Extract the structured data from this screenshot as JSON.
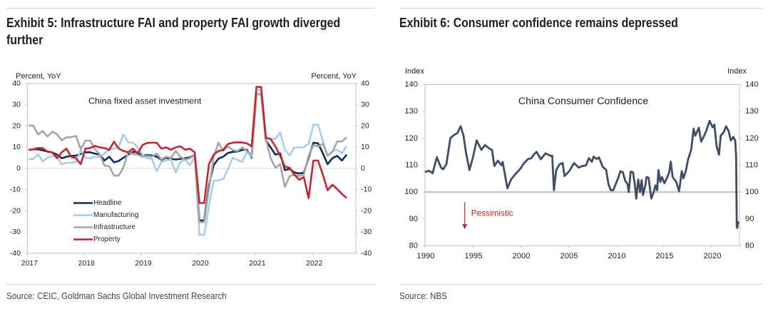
{
  "panels": [
    {
      "title": "Exhibit 5: Infrastructure FAI and property FAI growth diverged further",
      "source": "Source: CEIC, Goldman Sachs Global Investment Research"
    },
    {
      "title": "Exhibit 6: Consumer confidence remains depressed",
      "source": "Source: NBS"
    }
  ],
  "chart_data": [
    {
      "type": "line",
      "title": "China fixed asset investment",
      "ylabel_left": "Percent, YoY",
      "ylabel_right": "Percent, YoY",
      "xlabel": "",
      "ylim": [
        -40,
        40
      ],
      "yticks": [
        40,
        30,
        20,
        10,
        0,
        -10,
        -20,
        -30,
        -40
      ],
      "xlim": [
        2017,
        2022.75
      ],
      "xticks": [
        2017,
        2018,
        2019,
        2020,
        2021,
        2022
      ],
      "x_start": "2017-01",
      "frequency": "monthly",
      "grid": false,
      "reference_line": 0,
      "legend_position": "lower-left",
      "series": [
        {
          "name": "Headline",
          "color": "#0c2e5a",
          "values": [
            8.7,
            9.0,
            9.0,
            8.5,
            8.0,
            7.5,
            6.5,
            4.8,
            5.5,
            5.9,
            6.0,
            6.8,
            7.6,
            7.6,
            7.0,
            6.5,
            3.7,
            5.5,
            2.9,
            3.5,
            5.0,
            6.5,
            7.8,
            7.6,
            6.1,
            6.3,
            6.1,
            5.6,
            4.0,
            5.0,
            4.5,
            4.2,
            4.5,
            4.8,
            5.2,
            6.4,
            -24.5,
            -24.5,
            -8.0,
            1.5,
            4.6,
            5.5,
            7.3,
            7.8,
            8.0,
            8.7,
            8.8,
            5.0,
            35.0,
            35.0,
            13.2,
            9.9,
            6.5,
            7.1,
            -0.8,
            -0.2,
            -1.9,
            -2.4,
            -2.1,
            5.0,
            12.1,
            11.8,
            7.1,
            2.0,
            4.8,
            5.9,
            3.7,
            6.5
          ]
        },
        {
          "name": "Manufacturing",
          "color": "#a8cde8",
          "values": [
            4.4,
            4.4,
            6.7,
            3.3,
            5.0,
            5.9,
            5.5,
            1.8,
            2.7,
            2.7,
            3.1,
            8.5,
            5.0,
            4.8,
            5.4,
            5.4,
            7.0,
            8.7,
            9.3,
            10.1,
            16.0,
            12.3,
            12.1,
            9.9,
            6.5,
            4.8,
            4.5,
            -1.3,
            3.1,
            3.7,
            4.2,
            -1.9,
            3.1,
            4.2,
            1.4,
            5.4,
            -31.3,
            -31.3,
            -18.0,
            -5.8,
            -5.5,
            -5.0,
            -0.5,
            5.0,
            4.0,
            3.0,
            8.0,
            5.5,
            37.0,
            37.0,
            14.4,
            14.0,
            13.8,
            16.9,
            8.8,
            6.0,
            9.9,
            9.9,
            10.0,
            11.6,
            20.6,
            20.6,
            12.7,
            6.0,
            8.2,
            8.8,
            7.1,
            10.5
          ]
        },
        {
          "name": "Infrastructure",
          "color": "#a5a5a5",
          "values": [
            20.2,
            20.2,
            16.0,
            17.6,
            15.0,
            17.3,
            16.1,
            13.2,
            14.7,
            14.7,
            15.3,
            9.1,
            13.1,
            13.1,
            9.1,
            6.7,
            1.3,
            1.0,
            -3.4,
            -3.4,
            0.5,
            7.8,
            6.7,
            6.5,
            5.5,
            5.9,
            5.5,
            7.0,
            4.2,
            5.5,
            5.0,
            8.2,
            5.4,
            4.2,
            4.8,
            6.4,
            -25.3,
            -25.3,
            -10.0,
            5.4,
            12.1,
            8.2,
            10.4,
            8.7,
            8.2,
            9.9,
            8.2,
            6.5,
            35.0,
            35.0,
            13.8,
            4.8,
            0.3,
            2.0,
            -8.7,
            -3.6,
            -3.0,
            -3.6,
            -3.0,
            6.0,
            11.0,
            10.4,
            11.6,
            6.0,
            7.7,
            12.7,
            12.7,
            14.7
          ]
        },
        {
          "name": "Property",
          "color": "#c1272d",
          "values": [
            8.7,
            9.0,
            9.6,
            9.6,
            7.8,
            7.6,
            4.8,
            7.6,
            9.3,
            5.4,
            4.8,
            2.0,
            9.3,
            9.6,
            10.6,
            9.9,
            9.6,
            8.7,
            12.6,
            9.3,
            8.2,
            7.6,
            9.3,
            7.1,
            11.0,
            12.0,
            12.1,
            12.1,
            9.3,
            9.9,
            8.8,
            9.9,
            10.4,
            8.8,
            9.3,
            7.6,
            -16.3,
            -16.3,
            2.0,
            6.5,
            8.2,
            8.7,
            11.5,
            12.1,
            12.3,
            12.2,
            11.8,
            10.4,
            38.4,
            38.4,
            14.4,
            13.8,
            10.4,
            5.9,
            0.9,
            0.3,
            -3.0,
            -5.3,
            -4.1,
            -14.0,
            3.7,
            3.7,
            -3.0,
            -10.3,
            -7.7,
            -9.7,
            -12.0,
            -14.0
          ]
        }
      ]
    },
    {
      "type": "line",
      "title": "China Consumer Confidence",
      "ylabel_left": "Index",
      "ylabel_right": "Index",
      "xlabel": "",
      "ylim": [
        80,
        140
      ],
      "yticks": [
        140,
        130,
        120,
        110,
        100,
        90,
        80
      ],
      "xlim": [
        1990,
        2022.9
      ],
      "xticks": [
        1990,
        1995,
        2000,
        2005,
        2010,
        2015,
        2020
      ],
      "grid": false,
      "reference_line": 100,
      "annotation": {
        "text": "Pessimistic",
        "color": "#c1272d",
        "direction": "down",
        "arrow_from": [
          1994.16,
          96.3
        ],
        "arrow_to": [
          1994.16,
          86.2
        ],
        "label_at": [
          1994.83,
          92.0
        ]
      },
      "series": [
        {
          "name": "China Consumer Confidence",
          "color": "#3f4e66",
          "points": [
            [
              1990.0,
              107.5
            ],
            [
              1990.43,
              107.9
            ],
            [
              1990.8,
              107.0
            ],
            [
              1991.24,
              113.0
            ],
            [
              1991.67,
              109.1
            ],
            [
              1991.92,
              108.5
            ],
            [
              1992.24,
              110.4
            ],
            [
              1992.66,
              120.1
            ],
            [
              1993.03,
              121.2
            ],
            [
              1993.4,
              122.0
            ],
            [
              1993.73,
              124.5
            ],
            [
              1994.03,
              121.0
            ],
            [
              1994.28,
              114.8
            ],
            [
              1994.65,
              108.2
            ],
            [
              1995.02,
              113.0
            ],
            [
              1995.4,
              119.2
            ],
            [
              1995.9,
              115.7
            ],
            [
              1996.27,
              117.5
            ],
            [
              1996.77,
              116.1
            ],
            [
              1997.01,
              115.7
            ],
            [
              1997.26,
              109.7
            ],
            [
              1997.63,
              111.7
            ],
            [
              1998.0,
              110.0
            ],
            [
              1998.13,
              111.2
            ],
            [
              1998.37,
              106.4
            ],
            [
              1998.63,
              101.4
            ],
            [
              1999.0,
              104.7
            ],
            [
              1999.5,
              106.9
            ],
            [
              1999.87,
              108.2
            ],
            [
              2000.37,
              110.8
            ],
            [
              2000.75,
              112.2
            ],
            [
              2001.12,
              112.6
            ],
            [
              2001.37,
              113.9
            ],
            [
              2001.67,
              115.0
            ],
            [
              2002.12,
              112.2
            ],
            [
              2002.61,
              114.4
            ],
            [
              2003.11,
              113.5
            ],
            [
              2003.31,
              113.5
            ],
            [
              2003.49,
              100.7
            ],
            [
              2003.73,
              108.2
            ],
            [
              2004.1,
              110.4
            ],
            [
              2004.4,
              110.8
            ],
            [
              2004.6,
              106.0
            ],
            [
              2005.1,
              107.8
            ],
            [
              2005.6,
              110.8
            ],
            [
              2006.1,
              109.1
            ],
            [
              2006.47,
              109.7
            ],
            [
              2006.84,
              109.9
            ],
            [
              2007.14,
              112.6
            ],
            [
              2007.46,
              111.3
            ],
            [
              2007.66,
              113.2
            ],
            [
              2007.96,
              112.3
            ],
            [
              2008.21,
              112.9
            ],
            [
              2008.58,
              109.5
            ],
            [
              2008.96,
              108.2
            ],
            [
              2009.2,
              102.9
            ],
            [
              2009.45,
              100.7
            ],
            [
              2009.7,
              100.7
            ],
            [
              2010.2,
              105.1
            ],
            [
              2010.45,
              107.8
            ],
            [
              2010.7,
              107.4
            ],
            [
              2010.95,
              104.2
            ],
            [
              2011.2,
              103.0
            ],
            [
              2011.32,
              100.0
            ],
            [
              2011.52,
              107.6
            ],
            [
              2011.77,
              107.4
            ],
            [
              2011.94,
              103.3
            ],
            [
              2012.11,
              97.6
            ],
            [
              2012.31,
              104.7
            ],
            [
              2012.51,
              100.0
            ],
            [
              2012.68,
              104.5
            ],
            [
              2012.81,
              98.9
            ],
            [
              2013.06,
              102.5
            ],
            [
              2013.18,
              105.6
            ],
            [
              2013.4,
              105.3
            ],
            [
              2013.68,
              97.6
            ],
            [
              2013.93,
              100.0
            ],
            [
              2014.13,
              102.5
            ],
            [
              2014.3,
              100.7
            ],
            [
              2014.43,
              108.2
            ],
            [
              2014.63,
              103.8
            ],
            [
              2014.8,
              105.6
            ],
            [
              2015.05,
              103.3
            ],
            [
              2015.3,
              105.1
            ],
            [
              2015.55,
              107.3
            ],
            [
              2015.72,
              111.3
            ],
            [
              2015.92,
              105.6
            ],
            [
              2016.29,
              103.8
            ],
            [
              2016.59,
              100.3
            ],
            [
              2016.87,
              107.8
            ],
            [
              2017.04,
              105.1
            ],
            [
              2017.29,
              107.8
            ],
            [
              2017.54,
              112.2
            ],
            [
              2017.86,
              115.7
            ],
            [
              2018.11,
              123.6
            ],
            [
              2018.28,
              121.0
            ],
            [
              2018.66,
              123.9
            ],
            [
              2018.9,
              118.8
            ],
            [
              2019.16,
              120.5
            ],
            [
              2019.48,
              123.2
            ],
            [
              2019.78,
              126.5
            ],
            [
              2020.1,
              124.1
            ],
            [
              2020.28,
              125.1
            ],
            [
              2020.52,
              117.0
            ],
            [
              2020.77,
              113.9
            ],
            [
              2020.95,
              121.0
            ],
            [
              2021.27,
              122.3
            ],
            [
              2021.51,
              124.5
            ],
            [
              2021.77,
              122.8
            ],
            [
              2022.01,
              119.2
            ],
            [
              2022.26,
              120.5
            ],
            [
              2022.46,
              119.2
            ],
            [
              2022.56,
              113.2
            ],
            [
              2022.63,
              87.0
            ],
            [
              2022.69,
              86.7
            ],
            [
              2022.75,
              88.9
            ],
            [
              2022.8,
              88.2
            ]
          ]
        }
      ]
    }
  ]
}
